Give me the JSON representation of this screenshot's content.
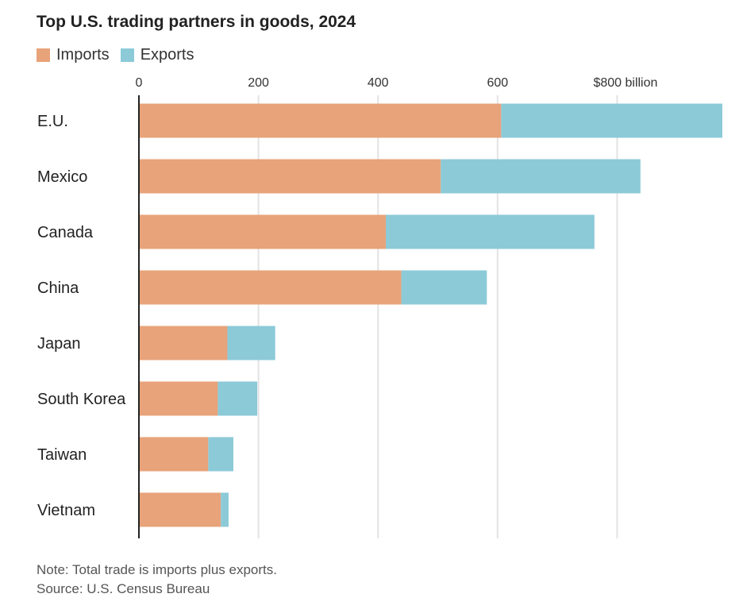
{
  "chart_data": {
    "type": "bar",
    "orientation": "horizontal",
    "stacked": true,
    "title": "Top U.S. trading partners in goods, 2024",
    "categories": [
      "E.U.",
      "Mexico",
      "Canada",
      "China",
      "Japan",
      "South Korea",
      "Taiwan",
      "Vietnam"
    ],
    "series": [
      {
        "name": "Imports",
        "color": "#e8a37a",
        "values": [
          606,
          505,
          413,
          439,
          148,
          132,
          116,
          137
        ]
      },
      {
        "name": "Exports",
        "color": "#8ccad8",
        "values": [
          370,
          334,
          349,
          143,
          80,
          66,
          42,
          13
        ]
      }
    ],
    "x_ticks": [
      {
        "value": 0,
        "label": "0"
      },
      {
        "value": 200,
        "label": "200"
      },
      {
        "value": 400,
        "label": "400"
      },
      {
        "value": 600,
        "label": "600"
      },
      {
        "value": 800,
        "label": "$800 billion"
      }
    ],
    "xlim": [
      0,
      976
    ],
    "grid": true,
    "legend_position": "top-left"
  },
  "footer": {
    "note": "Note: Total trade is imports plus exports.",
    "source": "Source: U.S. Census Bureau"
  }
}
